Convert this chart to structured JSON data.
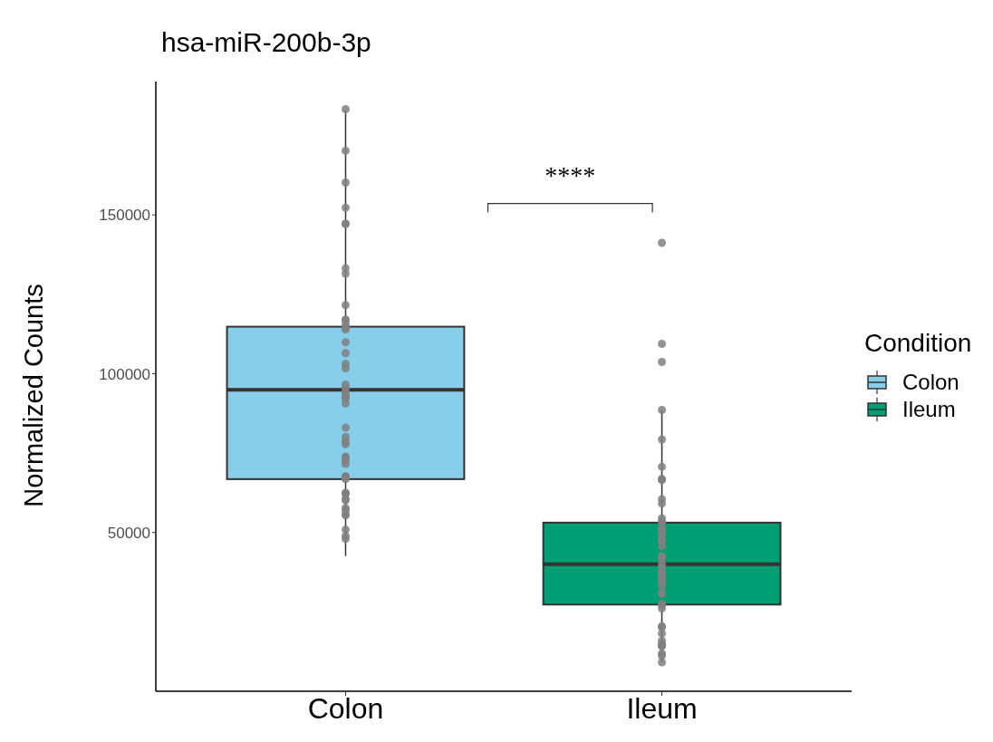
{
  "chart_data": {
    "type": "box",
    "title": "hsa-miR-200b-3p",
    "ylabel": "Normalized Counts",
    "legend_title": "Condition",
    "legend": "right",
    "categories": [
      "Colon",
      "Ileum"
    ],
    "series": [
      {
        "name": "Colon",
        "color": "#87ceeb",
        "boxes": [
          {
            "low": 42600,
            "q1": 66800,
            "median": 94900,
            "q3": 114800,
            "high": 183000
          },
          null
        ]
      },
      {
        "name": "Ileum",
        "color": "#009e73",
        "boxes": [
          null,
          {
            "low": 9100,
            "q1": 27300,
            "median": 40000,
            "q3": 53100,
            "high": 88600
          }
        ]
      },
      {
        "type": "scatter",
        "color": "#808080",
        "x": [
          "Colon",
          "Colon",
          "Colon",
          "Colon",
          "Colon",
          "Colon",
          "Colon",
          "Colon",
          "Colon",
          "Colon",
          "Colon",
          "Colon",
          "Colon",
          "Colon",
          "Colon",
          "Colon",
          "Colon",
          "Colon",
          "Colon",
          "Colon",
          "Colon",
          "Colon",
          "Colon",
          "Colon",
          "Colon",
          "Colon",
          "Colon",
          "Colon",
          "Colon",
          "Colon",
          "Colon",
          "Colon",
          "Colon",
          "Colon",
          "Colon",
          "Colon",
          "Colon",
          "Colon",
          "Colon",
          "Colon",
          "Colon",
          "Colon",
          "Colon",
          "Colon",
          "Colon",
          "Colon",
          "Colon",
          "Colon",
          "Colon",
          "Colon",
          "Colon",
          "Ileum",
          "Ileum",
          "Ileum",
          "Ileum",
          "Ileum",
          "Ileum",
          "Ileum",
          "Ileum",
          "Ileum",
          "Ileum",
          "Ileum",
          "Ileum",
          "Ileum",
          "Ileum",
          "Ileum",
          "Ileum",
          "Ileum",
          "Ileum",
          "Ileum",
          "Ileum",
          "Ileum",
          "Ileum",
          "Ileum",
          "Ileum",
          "Ileum",
          "Ileum",
          "Ileum",
          "Ileum",
          "Ileum",
          "Ileum",
          "Ileum",
          "Ileum",
          "Ileum",
          "Ileum",
          "Ileum",
          "Ileum",
          "Ileum",
          "Ileum",
          "Ileum",
          "Ileum",
          "Ileum",
          "Ileum",
          "Ileum",
          "Ileum",
          "Ileum",
          "Ileum",
          "Ileum",
          "Ileum",
          "Ileum",
          "Ileum",
          "Ileum"
        ],
        "values": [
          183300,
          170200,
          160200,
          152300,
          147200,
          147200,
          133200,
          131500,
          121600,
          117000,
          117000,
          115600,
          114500,
          113900,
          109900,
          106500,
          103100,
          101700,
          96600,
          95500,
          94300,
          94000,
          92900,
          92600,
          92300,
          90600,
          83000,
          80100,
          78700,
          77800,
          73900,
          73600,
          72700,
          71600,
          67600,
          67600,
          67600,
          67300,
          66800,
          62500,
          62200,
          62200,
          60500,
          60200,
          57700,
          57100,
          55700,
          55400,
          50900,
          48900,
          48000,
          141200,
          109400,
          103700,
          88600,
          79300,
          70700,
          66800,
          66800,
          66500,
          60500,
          59100,
          54500,
          53400,
          53100,
          51400,
          50900,
          50000,
          49400,
          47700,
          47400,
          47400,
          45700,
          42600,
          42300,
          41500,
          40000,
          38900,
          37500,
          37200,
          36400,
          35800,
          35200,
          34900,
          34400,
          33200,
          31000,
          30700,
          27600,
          27300,
          26100,
          20500,
          20200,
          18200,
          15900,
          14800,
          14500,
          14500,
          14200,
          11900,
          11100,
          9100
        ]
      }
    ],
    "marker": "circle",
    "ylim": [
      0,
      192000
    ],
    "yticks": [
      50000,
      100000,
      150000
    ],
    "annotations": [
      "****"
    ]
  }
}
